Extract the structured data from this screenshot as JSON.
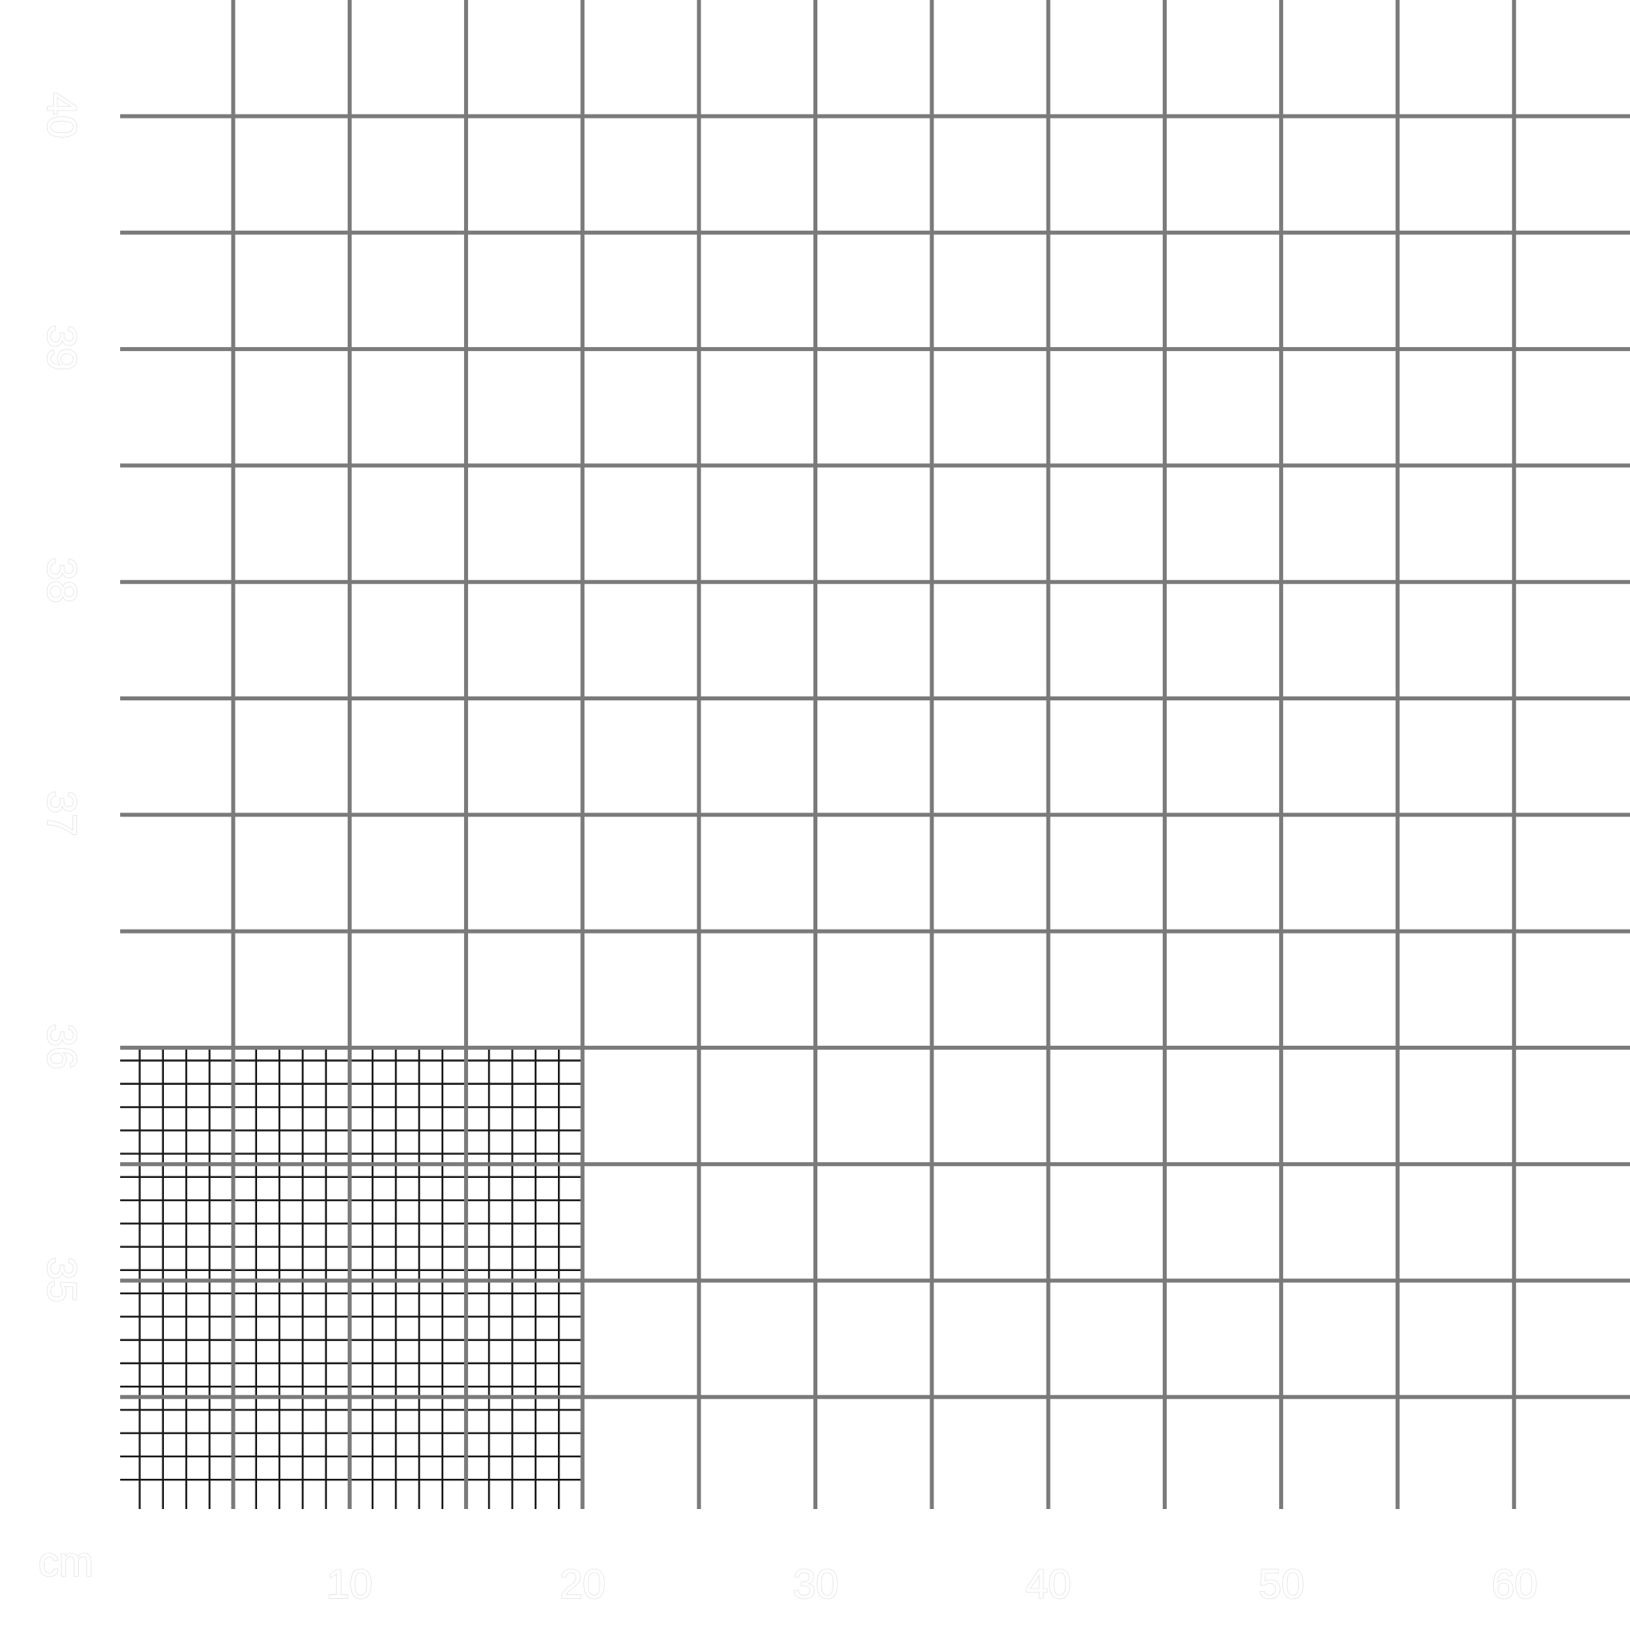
{
  "grid": {
    "major_color": "#7a7a7a",
    "minor_color": "#1a1a1a",
    "background": "#ffffff",
    "label_color": "#e4e4e4"
  },
  "x_scale": {
    "unit_label": "cm",
    "tick_labels": [
      "10",
      "20",
      "30",
      "40",
      "50",
      "60"
    ]
  },
  "y_scale": {
    "tick_labels": [
      "35",
      "36",
      "37",
      "38",
      "39",
      "40"
    ]
  }
}
